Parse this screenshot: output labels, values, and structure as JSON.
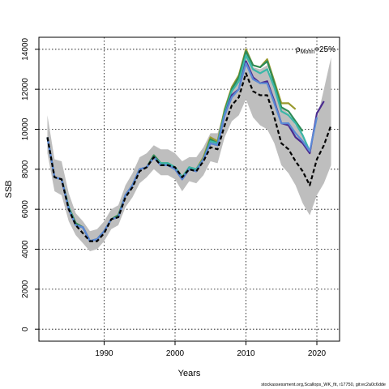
{
  "footer_text": "stockassessment.org,Scallops_WK_fit, r17750, git:ec2a0c6dde",
  "chart_data": {
    "type": "line",
    "title": "",
    "xlabel": "Years",
    "ylabel": "SSB",
    "xlim": [
      1980.8,
      2023.2
    ],
    "ylim": [
      -600,
      14600
    ],
    "xticks": [
      1990,
      2000,
      2010,
      2020
    ],
    "yticks": [
      0,
      2000,
      4000,
      6000,
      8000,
      10000,
      12000,
      14000
    ],
    "grid": true,
    "annotation": {
      "rho_symbol": "ρ",
      "rho_subscript": "Mohn",
      "rho_value": "=25%"
    },
    "confidence_band": {
      "x": [
        1982,
        1983,
        1984,
        1985,
        1986,
        1987,
        1988,
        1989,
        1990,
        1991,
        1992,
        1993,
        1994,
        1995,
        1996,
        1997,
        1998,
        1999,
        2000,
        2001,
        2002,
        2003,
        2004,
        2005,
        2006,
        2007,
        2008,
        2009,
        2010,
        2011,
        2012,
        2013,
        2014,
        2015,
        2016,
        2017,
        2018,
        2019,
        2020,
        2021,
        2022
      ],
      "upper": [
        10700,
        8500,
        8400,
        6800,
        5800,
        5400,
        4900,
        5000,
        5400,
        6000,
        6200,
        7200,
        7800,
        8600,
        8800,
        9200,
        9000,
        9000,
        8800,
        8400,
        8600,
        8600,
        9100,
        9800,
        9800,
        11000,
        12200,
        12600,
        14100,
        13100,
        13000,
        13200,
        12000,
        11100,
        10800,
        10200,
        9800,
        8900,
        10500,
        12000,
        13600
      ],
      "lower": [
        8800,
        6900,
        6700,
        5400,
        4700,
        4300,
        3900,
        4000,
        4400,
        5000,
        5200,
        6100,
        6600,
        7300,
        7600,
        8000,
        7700,
        7700,
        7500,
        6900,
        7400,
        7300,
        7700,
        8400,
        8300,
        9600,
        10400,
        10700,
        11500,
        10600,
        10200,
        10000,
        9300,
        8200,
        7800,
        7200,
        6300,
        5700,
        6700,
        7300,
        8200
      ]
    },
    "series": [
      {
        "color": "#000000",
        "dashed": true,
        "x": [
          1982,
          1983,
          1984,
          1985,
          1986,
          1987,
          1988,
          1989,
          1990,
          1991,
          1992,
          1993,
          1994,
          1995,
          1996,
          1997,
          1998,
          1999,
          2000,
          2001,
          2002,
          2003,
          2004,
          2005,
          2006,
          2007,
          2008,
          2009,
          2010,
          2011,
          2012,
          2013,
          2014,
          2015,
          2016,
          2017,
          2018,
          2019,
          2020,
          2021,
          2022
        ],
        "values": [
          9600,
          7600,
          7500,
          6000,
          5200,
          4800,
          4400,
          4400,
          4800,
          5500,
          5600,
          6600,
          7100,
          7900,
          8100,
          8600,
          8200,
          8200,
          8100,
          7600,
          8000,
          7900,
          8400,
          9100,
          9000,
          10200,
          11200,
          11600,
          12800,
          11900,
          11700,
          11700,
          10600,
          9300,
          9000,
          8400,
          7900,
          7200,
          8500,
          9200,
          10200
        ]
      },
      {
        "color": "#5b8ad6",
        "dashed": false,
        "x": [
          1982,
          1983,
          1984,
          1985,
          1986,
          1987,
          1988,
          1989,
          1990,
          1991,
          1992,
          1993,
          1994,
          1995,
          1996,
          1997,
          1998,
          1999,
          2000,
          2001,
          2002,
          2003,
          2004,
          2005,
          2006,
          2007,
          2008,
          2009,
          2010,
          2011,
          2012,
          2013,
          2014,
          2015,
          2016,
          2017,
          2018,
          2019,
          2020
        ],
        "values": [
          9600,
          7600,
          7500,
          6000,
          5200,
          5100,
          4400,
          4500,
          4900,
          5500,
          5600,
          6700,
          7200,
          8000,
          8100,
          8600,
          8200,
          8200,
          8000,
          7500,
          8000,
          7900,
          8500,
          9300,
          9200,
          10700,
          11600,
          12000,
          13300,
          12500,
          12300,
          12300,
          11300,
          10300,
          10300,
          9800,
          9400,
          8900,
          10600
        ]
      },
      {
        "color": "#4a2a8f",
        "dashed": false,
        "x": [
          1982,
          1983,
          1984,
          1985,
          1986,
          1987,
          1988,
          1989,
          1990,
          1991,
          1992,
          1993,
          1994,
          1995,
          1996,
          1997,
          1998,
          1999,
          2000,
          2001,
          2002,
          2003,
          2004,
          2005,
          2006,
          2007,
          2008,
          2009,
          2010,
          2011,
          2012,
          2013,
          2014,
          2015,
          2016,
          2017,
          2018,
          2019,
          2020,
          2021
        ],
        "values": [
          9600,
          7600,
          7500,
          6000,
          5200,
          5100,
          4400,
          4500,
          4900,
          5500,
          5600,
          6700,
          7200,
          8000,
          8100,
          8600,
          8200,
          8200,
          8000,
          7500,
          8000,
          7900,
          8500,
          9300,
          9200,
          10700,
          11700,
          12000,
          13400,
          12600,
          12300,
          12400,
          11400,
          10300,
          10200,
          9600,
          9300,
          8800,
          10800,
          11400
        ]
      },
      {
        "color": "#3ab7a8",
        "dashed": false,
        "x": [
          1982,
          1983,
          1984,
          1985,
          1986,
          1987,
          1988,
          1989,
          1990,
          1991,
          1992,
          1993,
          1994,
          1995,
          1996,
          1997,
          1998,
          1999,
          2000,
          2001,
          2002,
          2003,
          2004,
          2005,
          2006,
          2007,
          2008,
          2009,
          2010,
          2011,
          2012,
          2013,
          2014,
          2015,
          2016,
          2017,
          2018,
          2019
        ],
        "values": [
          9600,
          7600,
          7500,
          6100,
          5200,
          5100,
          4400,
          4500,
          4900,
          5500,
          5600,
          6700,
          7200,
          8000,
          8100,
          8600,
          8300,
          8300,
          8100,
          7600,
          8100,
          8000,
          8500,
          9400,
          9300,
          10800,
          11900,
          12400,
          13700,
          13000,
          12800,
          13000,
          12100,
          10900,
          10700,
          10300,
          9700,
          8900
        ]
      },
      {
        "color": "#2e8b57",
        "dashed": false,
        "x": [
          1982,
          1983,
          1984,
          1985,
          1986,
          1987,
          1988,
          1989,
          1990,
          1991,
          1992,
          1993,
          1994,
          1995,
          1996,
          1997,
          1998,
          1999,
          2000,
          2001,
          2002,
          2003,
          2004,
          2005,
          2006,
          2007,
          2008,
          2009,
          2010,
          2011,
          2012,
          2013,
          2014,
          2015,
          2016,
          2017,
          2018
        ],
        "values": [
          9600,
          7600,
          7500,
          6100,
          5300,
          5100,
          4400,
          4500,
          4900,
          5500,
          5700,
          6700,
          7200,
          8000,
          8100,
          8700,
          8300,
          8300,
          8100,
          7600,
          8100,
          8000,
          8500,
          9500,
          9300,
          10900,
          12000,
          12600,
          13900,
          13200,
          13100,
          13400,
          12300,
          11100,
          10900,
          10400,
          9900
        ]
      },
      {
        "color": "#9a9a2e",
        "dashed": false,
        "x": [
          1982,
          1983,
          1984,
          1985,
          1986,
          1987,
          1988,
          1989,
          1990,
          1991,
          1992,
          1993,
          1994,
          1995,
          1996,
          1997,
          1998,
          1999,
          2000,
          2001,
          2002,
          2003,
          2004,
          2005,
          2006,
          2007,
          2008,
          2009,
          2010,
          2011,
          2012,
          2013,
          2014,
          2015,
          2016,
          2017
        ],
        "values": [
          9600,
          7600,
          7500,
          6100,
          5300,
          5100,
          4400,
          4500,
          4900,
          5500,
          5700,
          6700,
          7200,
          8000,
          8100,
          8700,
          8300,
          8300,
          8100,
          7600,
          8100,
          8000,
          8600,
          9600,
          9400,
          11000,
          12100,
          12700,
          14000,
          13200,
          13100,
          13500,
          12400,
          11300,
          11300,
          11000
        ]
      }
    ]
  }
}
